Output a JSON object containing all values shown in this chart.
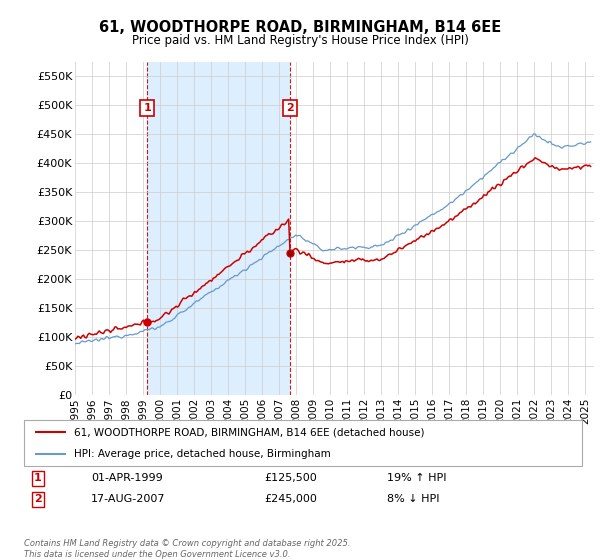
{
  "title": "61, WOODTHORPE ROAD, BIRMINGHAM, B14 6EE",
  "subtitle": "Price paid vs. HM Land Registry's House Price Index (HPI)",
  "ylabel_ticks": [
    "£0",
    "£50K",
    "£100K",
    "£150K",
    "£200K",
    "£250K",
    "£300K",
    "£350K",
    "£400K",
    "£450K",
    "£500K",
    "£550K"
  ],
  "ytick_values": [
    0,
    50000,
    100000,
    150000,
    200000,
    250000,
    300000,
    350000,
    400000,
    450000,
    500000,
    550000
  ],
  "ylim": [
    0,
    575000
  ],
  "xlim_start": 1995.0,
  "xlim_end": 2025.5,
  "legend_line1": "61, WOODTHORPE ROAD, BIRMINGHAM, B14 6EE (detached house)",
  "legend_line2": "HPI: Average price, detached house, Birmingham",
  "transaction1_date": "01-APR-1999",
  "transaction1_price": "£125,500",
  "transaction1_hpi": "19% ↑ HPI",
  "transaction2_date": "17-AUG-2007",
  "transaction2_price": "£245,000",
  "transaction2_hpi": "8% ↓ HPI",
  "footer": "Contains HM Land Registry data © Crown copyright and database right 2025.\nThis data is licensed under the Open Government Licence v3.0.",
  "red_color": "#cc0000",
  "blue_color": "#6699cc",
  "shade_color": "#ddeeff",
  "marker1_x": 1999.25,
  "marker1_y": 125500,
  "marker2_x": 2007.62,
  "marker2_y": 245000,
  "vline1_x": 1999.25,
  "vline2_x": 2007.62,
  "background_color": "#ffffff",
  "grid_color": "#cccccc",
  "hpi_base_1995": 88000,
  "hpi_base_2025": 430000,
  "prop_base_1995": 105000
}
